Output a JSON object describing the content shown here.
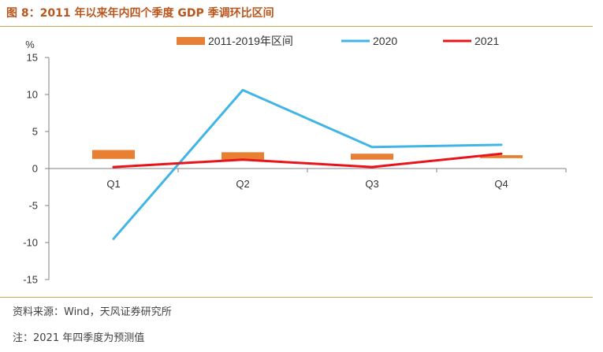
{
  "figure": {
    "title": "图 8：2011 年以来年内四个季度 GDP 季调环比区间",
    "source": "资料来源：Wind，天风证券研究所",
    "note": "注：2021 年四季度为预测值"
  },
  "chart_data": {
    "type": "line",
    "ylabel": "%",
    "ylim": [
      -15,
      15
    ],
    "yticks": [
      15,
      10,
      5,
      0,
      -5,
      -10,
      -15
    ],
    "categories": [
      "Q1",
      "Q2",
      "Q3",
      "Q4"
    ],
    "range_series": {
      "name": "2011-2019年区间",
      "color": "#e97f33",
      "ranges": [
        [
          1.3,
          2.5
        ],
        [
          1.2,
          2.2
        ],
        [
          1.2,
          2.0
        ],
        [
          1.4,
          1.8
        ]
      ]
    },
    "series": [
      {
        "name": "2020",
        "color": "#41b6e6",
        "values": [
          -9.5,
          10.6,
          2.9,
          3.2
        ]
      },
      {
        "name": "2021",
        "color": "#e8141c",
        "values": [
          0.2,
          1.2,
          0.2,
          2.0
        ]
      }
    ],
    "legend_position": "top",
    "grid": false
  }
}
